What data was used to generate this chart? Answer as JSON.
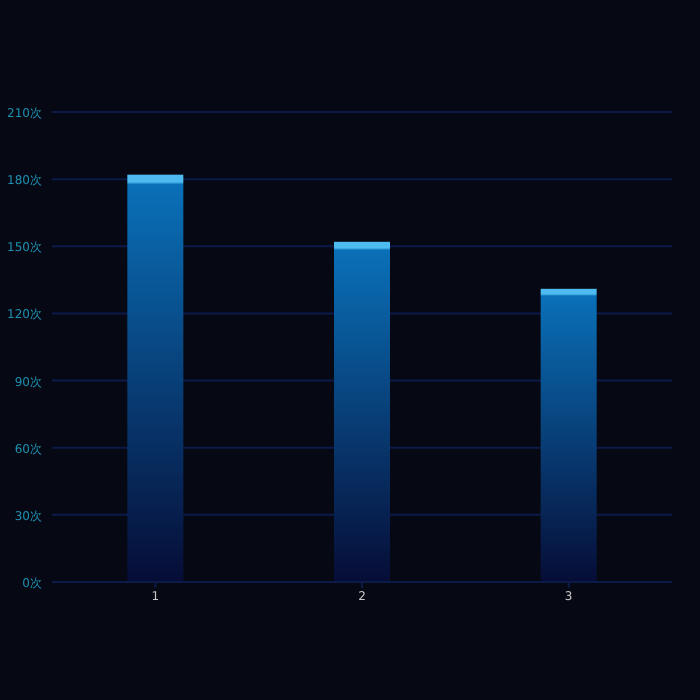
{
  "chart_data": {
    "type": "bar",
    "categories": [
      "1",
      "2",
      "3"
    ],
    "values": [
      182,
      152,
      131
    ],
    "color": "#0a70b8",
    "ylim": [
      0,
      210
    ],
    "yticks": [
      {
        "value": 0,
        "label": "0次"
      },
      {
        "value": 30,
        "label": "30次"
      },
      {
        "value": 60,
        "label": "60次"
      },
      {
        "value": 90,
        "label": "90次"
      },
      {
        "value": 120,
        "label": "120次"
      },
      {
        "value": 150,
        "label": "150次"
      },
      {
        "value": 180,
        "label": "180次"
      },
      {
        "value": 210,
        "label": "210次"
      }
    ],
    "grid": "y"
  }
}
